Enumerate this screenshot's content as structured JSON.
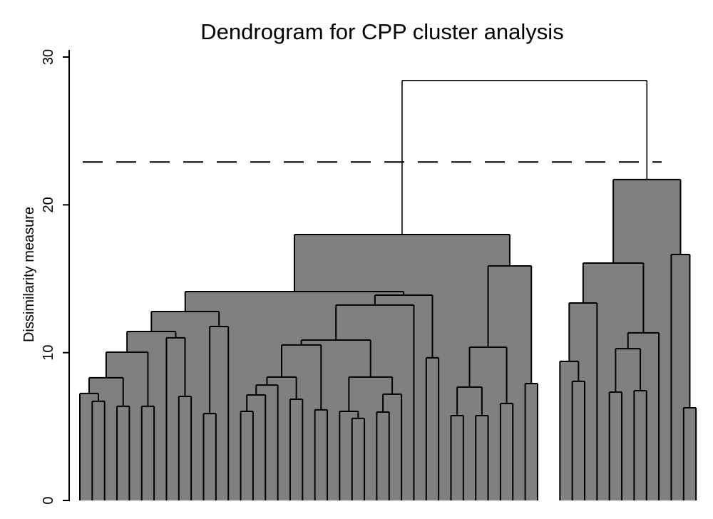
{
  "chart_data": {
    "type": "dendrogram",
    "title": "Dendrogram for CPP cluster analysis",
    "xlabel": "",
    "ylabel": "Dissimilarity measure",
    "ylim": [
      0,
      30
    ],
    "yticks": [
      0,
      10,
      20,
      30
    ],
    "ytick_labels": [
      "0",
      "10",
      "20",
      "30"
    ],
    "grid": false,
    "legend": "none",
    "n_leaves": 50,
    "cluster_sizes": [
      38,
      12
    ],
    "cut_line": {
      "value": 22.9,
      "style": "dashed"
    },
    "fill_color": "#808080",
    "line_color": "#000000",
    "merges": [
      {
        "id": "n1",
        "a": "L1",
        "b": "L2",
        "height": 6.71
      },
      {
        "id": "n2",
        "a": "L0",
        "b": "n1",
        "height": 7.24
      },
      {
        "id": "n3",
        "a": "L3",
        "b": "L4",
        "height": 6.37
      },
      {
        "id": "n4",
        "a": "n2",
        "b": "n3",
        "height": 8.3
      },
      {
        "id": "n5",
        "a": "L5",
        "b": "L6",
        "height": 6.37
      },
      {
        "id": "n6",
        "a": "n4",
        "b": "n5",
        "height": 10.03
      },
      {
        "id": "n7",
        "a": "L8",
        "b": "L9",
        "height": 7.04
      },
      {
        "id": "n8",
        "a": "L7",
        "b": "n7",
        "height": 11.0
      },
      {
        "id": "n9",
        "a": "n6",
        "b": "n8",
        "height": 11.43
      },
      {
        "id": "n10",
        "a": "L10",
        "b": "L11",
        "height": 5.88
      },
      {
        "id": "n11",
        "a": "n10",
        "b": "L12",
        "height": 11.77
      },
      {
        "id": "n12",
        "a": "n9",
        "b": "n11",
        "height": 12.78
      },
      {
        "id": "n13",
        "a": "L13",
        "b": "L14",
        "height": 6.03
      },
      {
        "id": "n14",
        "a": "n13",
        "b": "L15",
        "height": 7.14
      },
      {
        "id": "n15",
        "a": "n14",
        "b": "L16",
        "height": 7.81
      },
      {
        "id": "n16",
        "a": "L17",
        "b": "L18",
        "height": 6.85
      },
      {
        "id": "n17",
        "a": "n15",
        "b": "n16",
        "height": 8.35
      },
      {
        "id": "n18",
        "a": "L19",
        "b": "L20",
        "height": 6.13
      },
      {
        "id": "n19",
        "a": "n17",
        "b": "n18",
        "height": 10.52
      },
      {
        "id": "n20",
        "a": "L22",
        "b": "L23",
        "height": 5.55
      },
      {
        "id": "n21",
        "a": "L21",
        "b": "n20",
        "height": 6.03
      },
      {
        "id": "n22",
        "a": "L24",
        "b": "L25",
        "height": 5.98
      },
      {
        "id": "n23",
        "a": "n22",
        "b": "L26",
        "height": 7.19
      },
      {
        "id": "n24",
        "a": "n21",
        "b": "n23",
        "height": 8.35
      },
      {
        "id": "n25",
        "a": "n19",
        "b": "n24",
        "height": 10.85
      },
      {
        "id": "n26",
        "a": "n25",
        "b": "L27",
        "height": 13.22
      },
      {
        "id": "n27",
        "a": "L28",
        "b": "L29",
        "height": 9.65
      },
      {
        "id": "n28",
        "a": "n26",
        "b": "n27",
        "height": 13.89
      },
      {
        "id": "n29",
        "a": "n12",
        "b": "n28",
        "height": 14.13
      },
      {
        "id": "n30",
        "a": "L30",
        "b": "L31",
        "height": 5.74
      },
      {
        "id": "n31",
        "a": "L32",
        "b": "L33",
        "height": 5.74
      },
      {
        "id": "n32",
        "a": "n30",
        "b": "n31",
        "height": 7.67
      },
      {
        "id": "n33",
        "a": "L34",
        "b": "L35",
        "height": 6.56
      },
      {
        "id": "n34",
        "a": "n32",
        "b": "n33",
        "height": 10.37
      },
      {
        "id": "n35",
        "a": "L36",
        "b": "L37",
        "height": 7.91
      },
      {
        "id": "n36",
        "a": "n34",
        "b": "n35",
        "height": 15.87
      },
      {
        "id": "n37",
        "a": "n29",
        "b": "n36",
        "height": 17.99
      },
      {
        "id": "r1",
        "a": "L39",
        "b": "L40",
        "height": 8.06
      },
      {
        "id": "r2",
        "a": "L38",
        "b": "r1",
        "height": 9.41
      },
      {
        "id": "r3",
        "a": "r2",
        "b": "L41",
        "height": 13.36
      },
      {
        "id": "r4",
        "a": "L42",
        "b": "L43",
        "height": 7.33
      },
      {
        "id": "r5",
        "a": "L44",
        "b": "L45",
        "height": 7.43
      },
      {
        "id": "r6",
        "a": "r4",
        "b": "r5",
        "height": 10.27
      },
      {
        "id": "r7",
        "a": "r6",
        "b": "L46",
        "height": 11.34
      },
      {
        "id": "r8",
        "a": "r3",
        "b": "r7",
        "height": 16.06
      },
      {
        "id": "r9",
        "a": "L48",
        "b": "L49",
        "height": 6.27
      },
      {
        "id": "r10",
        "a": "L47",
        "b": "r9",
        "height": 16.64
      },
      {
        "id": "r11",
        "a": "r8",
        "b": "r10",
        "height": 21.71
      },
      {
        "id": "root",
        "a": "n37",
        "b": "r11",
        "height": 28.41
      }
    ]
  }
}
